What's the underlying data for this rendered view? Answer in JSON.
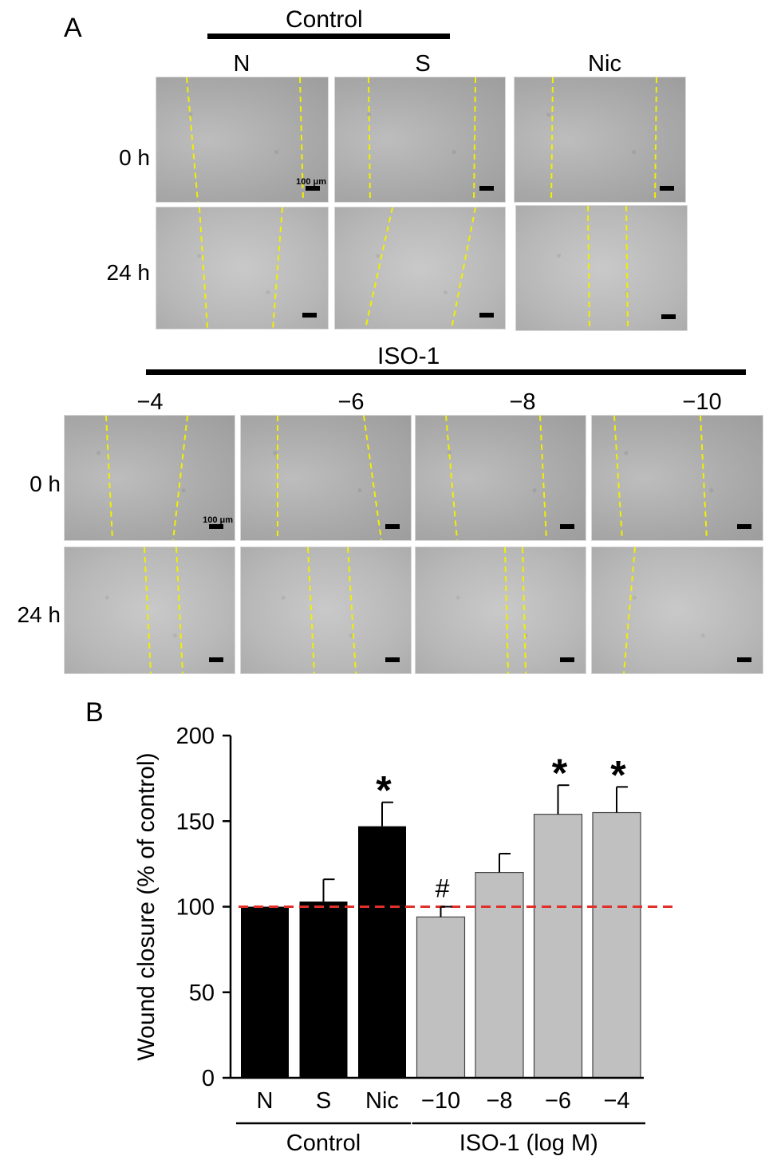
{
  "panel_a": {
    "letter": "A",
    "control_header": "Control",
    "control_columns": [
      "N",
      "S",
      "Nic"
    ],
    "iso_header": "ISO-1",
    "iso_columns": [
      "−4",
      "−6",
      "−8",
      "−10"
    ],
    "time_labels": [
      "0 h",
      "24 h"
    ],
    "scale_label": "100 μm"
  },
  "panel_b": {
    "letter": "B",
    "control_group_label": "Control",
    "iso_group_label": "ISO-1 (log M)"
  },
  "colors": {
    "control_bar": "#000000",
    "iso_bar": "#c0c0c0",
    "reference_line": "#e0302a",
    "wound_edge": "#f0f000"
  },
  "chart_data": {
    "type": "bar",
    "ylabel": "Wound closure (% of control)",
    "ylim": [
      0,
      200
    ],
    "yticks": [
      0,
      50,
      100,
      150,
      200
    ],
    "categories": [
      "N",
      "S",
      "Nic",
      "−10",
      "−8",
      "−6",
      "−4"
    ],
    "values": [
      100,
      103,
      147,
      94,
      120,
      154,
      155
    ],
    "errors": [
      0,
      13,
      14,
      6,
      11,
      17,
      15
    ],
    "group": [
      "control",
      "control",
      "control",
      "iso",
      "iso",
      "iso",
      "iso"
    ],
    "annotations": [
      "",
      "",
      "*",
      "#",
      "",
      "*",
      "*"
    ],
    "reference_line": 100
  }
}
